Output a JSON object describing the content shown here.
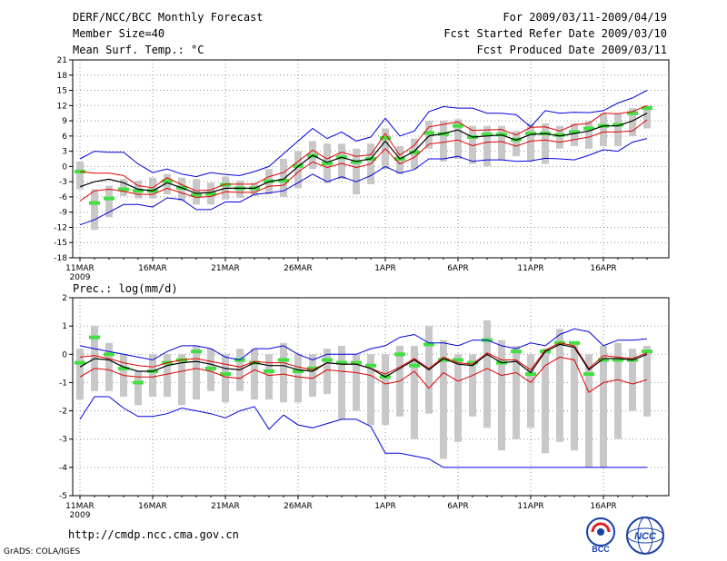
{
  "header": {
    "title": "DERF/NCC/BCC Monthly Forecast",
    "member_size": "Member Size=40",
    "variable": "Mean Surf. Temp.: °C",
    "period": "For 2009/03/11-2009/04/19",
    "started": "Fcst Started Refer Date 2009/03/10",
    "produced": "Fcst Produced Date 2009/03/11"
  },
  "footer": {
    "url": "http://cmdp.ncc.cma.gov.cn",
    "grads": "GrADS: COLA/IGES",
    "logo_left": "BCC",
    "logo_right": "NCC"
  },
  "colors": {
    "envelope": "#0000e0",
    "spread": "#e00000",
    "mean": "#000000",
    "median": "#40e040",
    "box": "#c8c8c8",
    "grid": "#909090"
  },
  "chart_data": [
    {
      "type": "line",
      "title": "Mean Surf. Temp.: °C",
      "xlabel": "",
      "ylabel": "",
      "ylim": [
        -18,
        21
      ],
      "yticks": [
        21,
        18,
        15,
        12,
        9,
        6,
        3,
        0,
        -3,
        -6,
        -9,
        -12,
        -15,
        -18
      ],
      "xticks": [
        "11MAR",
        "16MAR",
        "21MAR",
        "26MAR",
        "1APR",
        "6APR",
        "11APR",
        "16APR"
      ],
      "xtick_day": [
        1,
        6,
        11,
        16,
        22,
        27,
        32,
        37
      ],
      "year_label": "2009",
      "days": 40,
      "series": [
        {
          "name": "max",
          "values": [
            1.5,
            3,
            2.8,
            2.8,
            0.5,
            -1.2,
            -0.5,
            -1.5,
            -2,
            -1.2,
            -1.6,
            -1.8,
            -1,
            0,
            2.5,
            5,
            7.5,
            5.5,
            6.8,
            5,
            5.8,
            9.5,
            6,
            7,
            10.8,
            11.8,
            11.5,
            11.5,
            10.5,
            10.5,
            10.2,
            7.8,
            11,
            10.5,
            10.7,
            10.6,
            11,
            12.5,
            13.5,
            15
          ]
        },
        {
          "name": "upper",
          "values": [
            -1,
            -1.3,
            -1.3,
            -1.8,
            -3.8,
            -4.2,
            -2.2,
            -3.6,
            -4.8,
            -4.6,
            -3.5,
            -3.5,
            -3.5,
            -2,
            -1.2,
            1,
            3.2,
            1.5,
            2.8,
            2,
            2.3,
            6.5,
            2.2,
            4.2,
            7.8,
            8.3,
            8.8,
            7.1,
            7.2,
            7.3,
            6.2,
            7.7,
            7.8,
            7,
            8.2,
            8.5,
            10.5,
            10.4,
            10.8,
            12
          ]
        },
        {
          "name": "mean",
          "values": [
            -4,
            -3,
            -2.5,
            -3.2,
            -4.5,
            -4.8,
            -3.2,
            -4.2,
            -5.3,
            -5.1,
            -4.3,
            -4.3,
            -4.3,
            -3,
            -2.5,
            0,
            2.2,
            0.8,
            1.8,
            1,
            1.5,
            5,
            1.5,
            3,
            6,
            6.5,
            7.2,
            5.8,
            6,
            6.2,
            5.2,
            6.3,
            6.5,
            6,
            6.5,
            7,
            8,
            8,
            9,
            10.5
          ]
        },
        {
          "name": "lower",
          "values": [
            -6.8,
            -4.8,
            -4.5,
            -4.9,
            -5.5,
            -5.5,
            -4.3,
            -5.2,
            -6.1,
            -5.9,
            -5,
            -5.1,
            -5.1,
            -3.9,
            -3.7,
            -1.1,
            0.9,
            -0.2,
            0.6,
            -0.2,
            0.5,
            3.5,
            0.5,
            1.8,
            4.4,
            4.8,
            5.2,
            4.1,
            4.8,
            4.9,
            4,
            5,
            5.2,
            4.8,
            5.3,
            5.8,
            6.8,
            6.8,
            7,
            9.2
          ]
        },
        {
          "name": "min",
          "values": [
            -11.5,
            -10.5,
            -9,
            -7.5,
            -7.5,
            -8,
            -6.2,
            -6.5,
            -8.5,
            -8.5,
            -7,
            -7,
            -5.5,
            -5.2,
            -4.8,
            -3.2,
            -1.5,
            -3,
            -2,
            -3,
            -1.8,
            0,
            -1.3,
            -0.6,
            1.5,
            1.5,
            2,
            1,
            1.3,
            1.3,
            1,
            1.1,
            1.6,
            1.5,
            1.3,
            2.2,
            3.3,
            3,
            4.8,
            5.5
          ]
        },
        {
          "name": "median",
          "values": [
            -1,
            -7.2,
            -6.3,
            -4.5,
            -4.8,
            -4.8,
            -2.9,
            -4.2,
            -5.6,
            -5.4,
            -3.6,
            -4.3,
            -4.3,
            -2.9,
            -2.8,
            0.1,
            2.1,
            0.6,
            1.8,
            0.9,
            1.5,
            5.6,
            1.5,
            2.8,
            6.6,
            6.4,
            8,
            5.8,
            6.3,
            6.3,
            5.3,
            6.5,
            6.5,
            6.2,
            6.8,
            7.5,
            8,
            8.2,
            10.5,
            11.5
          ]
        },
        {
          "name": "box_hi",
          "values": [
            1,
            -4.5,
            -3.8,
            -2.5,
            -2.8,
            -2.2,
            -1.5,
            -2.2,
            -2.5,
            -3.2,
            -2,
            -2.8,
            -3.3,
            -0.5,
            1.5,
            3,
            5,
            4.5,
            4.5,
            3.5,
            4.5,
            7.5,
            4,
            5.5,
            9,
            9,
            9.3,
            8,
            8,
            8,
            7,
            8.5,
            8.5,
            8,
            8.5,
            9,
            10.5,
            10.5,
            11.5,
            12
          ]
        },
        {
          "name": "box_lo",
          "values": [
            -4.5,
            -12.5,
            -10,
            -5.8,
            -6.3,
            -6.3,
            -5.5,
            -6.8,
            -7.5,
            -7.5,
            -6.5,
            -6.2,
            -5.8,
            -5.5,
            -6,
            -4.3,
            -0.5,
            -3.3,
            -2.5,
            -5.5,
            -3.5,
            -0.5,
            -1.5,
            -0.5,
            3.5,
            1,
            1.5,
            0.5,
            0,
            1.3,
            2,
            1,
            0.5,
            3.5,
            4,
            3.5,
            4,
            4,
            6,
            7.5
          ]
        }
      ]
    },
    {
      "type": "line",
      "title": "Prec.: log(mm/d)",
      "xlabel": "",
      "ylabel": "",
      "ylim": [
        -5,
        2
      ],
      "yticks": [
        2,
        1,
        0,
        -1,
        -2,
        -3,
        -4,
        -5
      ],
      "xticks": [
        "11MAR",
        "16MAR",
        "21MAR",
        "26MAR",
        "1APR",
        "6APR",
        "11APR",
        "16APR"
      ],
      "xtick_day": [
        1,
        6,
        11,
        16,
        22,
        27,
        32,
        37
      ],
      "year_label": "2009",
      "days": 40,
      "series": [
        {
          "name": "max",
          "values": [
            0.3,
            0.2,
            0.1,
            0,
            -0.1,
            -0.2,
            0.1,
            0.3,
            0.3,
            0.2,
            -0.1,
            -0.2,
            0.2,
            0.2,
            0.3,
            0,
            -0.2,
            0,
            0,
            0,
            0.2,
            0.3,
            0.6,
            0.7,
            0.4,
            0.4,
            0.3,
            0.5,
            0.5,
            0.3,
            0.2,
            0.4,
            0.3,
            0.7,
            0.9,
            0.8,
            0.3,
            0.5,
            0.5,
            0.55
          ]
        },
        {
          "name": "upper",
          "values": [
            -0.1,
            -0.05,
            -0.15,
            -0.3,
            -0.4,
            -0.45,
            -0.3,
            -0.2,
            -0.15,
            -0.25,
            -0.35,
            -0.45,
            -0.25,
            -0.3,
            -0.3,
            -0.45,
            -0.55,
            -0.3,
            -0.35,
            -0.35,
            -0.5,
            -0.7,
            -0.45,
            -0.15,
            -0.5,
            -0.1,
            -0.3,
            -0.35,
            0.05,
            -0.2,
            -0.2,
            -0.55,
            0.15,
            0.4,
            0.3,
            -0.5,
            -0.05,
            -0.1,
            -0.15,
            0.05
          ]
        },
        {
          "name": "mean",
          "values": [
            -0.45,
            -0.15,
            -0.2,
            -0.45,
            -0.6,
            -0.6,
            -0.4,
            -0.3,
            -0.25,
            -0.35,
            -0.5,
            -0.55,
            -0.3,
            -0.4,
            -0.4,
            -0.55,
            -0.6,
            -0.3,
            -0.35,
            -0.35,
            -0.5,
            -0.8,
            -0.5,
            -0.2,
            -0.55,
            -0.15,
            -0.35,
            -0.4,
            0,
            -0.3,
            -0.25,
            -0.65,
            0.1,
            0.35,
            0.25,
            -0.55,
            -0.15,
            -0.15,
            -0.2,
            0
          ]
        },
        {
          "name": "lower",
          "values": [
            -0.8,
            -0.5,
            -0.55,
            -0.75,
            -0.8,
            -0.8,
            -0.7,
            -0.6,
            -0.5,
            -0.6,
            -0.8,
            -0.85,
            -0.55,
            -0.75,
            -0.7,
            -0.8,
            -0.85,
            -0.55,
            -0.6,
            -0.65,
            -0.75,
            -1.05,
            -0.95,
            -0.6,
            -1.2,
            -0.65,
            -0.95,
            -0.75,
            -0.5,
            -0.75,
            -0.65,
            -1,
            -0.4,
            -0.1,
            -0.2,
            -1.35,
            -1,
            -0.9,
            -1.05,
            -0.9
          ]
        },
        {
          "name": "min",
          "values": [
            -2.3,
            -1.5,
            -1.5,
            -1.9,
            -2.2,
            -2.2,
            -2.1,
            -1.9,
            -2,
            -2.1,
            -2.25,
            -2,
            -1.85,
            -2.65,
            -2.15,
            -2.5,
            -2.6,
            -2.45,
            -2.3,
            -2.3,
            -2.55,
            -3.5,
            -3.5,
            -3.6,
            -3.7,
            -4,
            -4,
            -4,
            -4,
            -4,
            -4,
            -4,
            -4,
            -4,
            -4,
            -4,
            -4,
            -4,
            -4,
            -4
          ]
        },
        {
          "name": "median",
          "values": [
            -0.3,
            0.6,
            0,
            -0.5,
            -1,
            -0.6,
            -0.3,
            -0.2,
            0.1,
            -0.5,
            -0.7,
            -0.2,
            -0.3,
            -0.6,
            -0.2,
            -0.6,
            -0.5,
            -0.2,
            -0.3,
            -0.3,
            -0.4,
            -0.8,
            0,
            -0.4,
            0.35,
            -0.2,
            -0.2,
            -0.3,
            0.5,
            -0.3,
            0.1,
            -0.7,
            0.1,
            0.4,
            0.4,
            -0.7,
            -0.2,
            -0.2,
            -0.2,
            0.1
          ]
        },
        {
          "name": "box_hi",
          "values": [
            0.2,
            1,
            0.4,
            0,
            -0.6,
            0,
            0,
            0,
            0.3,
            0.2,
            0,
            0.2,
            0.2,
            0,
            0.4,
            0,
            0,
            0.2,
            0.3,
            0,
            0,
            0,
            0.3,
            0.3,
            1,
            0.5,
            0,
            0,
            1.2,
            0.5,
            0.3,
            0,
            0.2,
            0.9,
            0.4,
            0,
            0.3,
            0.4,
            0.2,
            0.3
          ]
        },
        {
          "name": "box_lo",
          "values": [
            -1.6,
            -1.3,
            -1.3,
            -1.5,
            -1.8,
            -1.5,
            -1.5,
            -1.8,
            -1.6,
            -1.3,
            -1.7,
            -1.3,
            -1.6,
            -1.6,
            -1.7,
            -1.7,
            -1.5,
            -1.4,
            -2.3,
            -2,
            -2.5,
            -2.5,
            -2.2,
            -3,
            -2.1,
            -3.7,
            -3.1,
            -2.2,
            -2.6,
            -3.4,
            -3,
            -2.6,
            -3.5,
            -3.1,
            -3.4,
            -4,
            -4,
            -3,
            -2,
            -2.2
          ]
        }
      ]
    }
  ]
}
